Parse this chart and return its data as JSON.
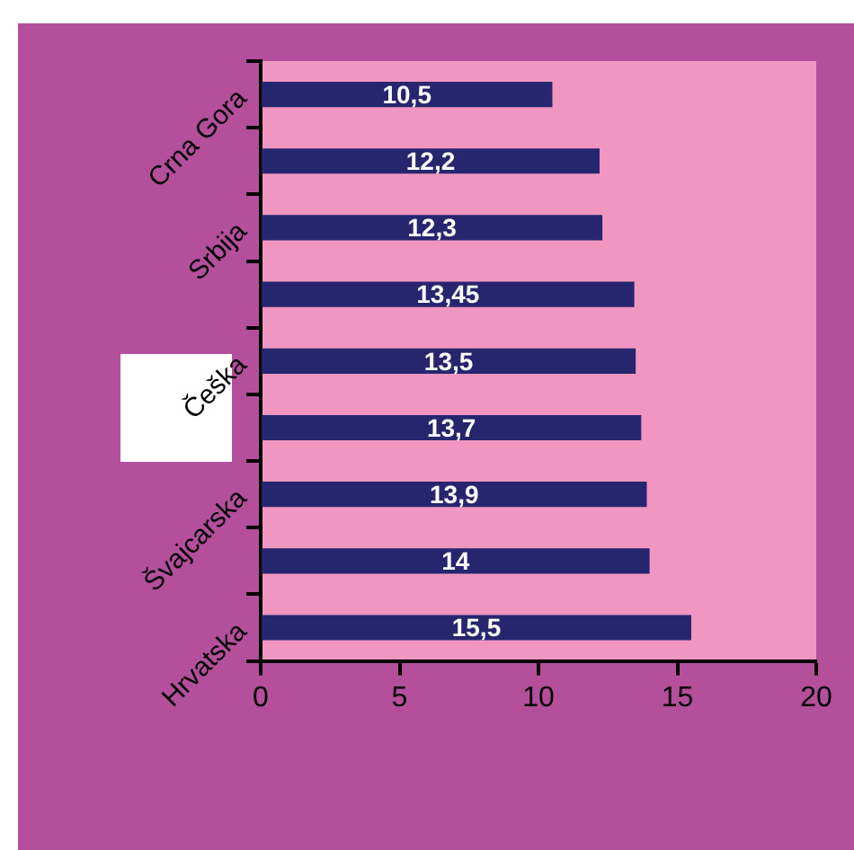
{
  "chart_data": {
    "type": "bar",
    "orientation": "horizontal",
    "categories": [
      "Crna Gora",
      null,
      "Srbija",
      null,
      "Češka",
      null,
      "Švajcarska",
      null,
      "Hrvatska"
    ],
    "values": [
      10.5,
      12.2,
      12.3,
      13.45,
      13.5,
      13.7,
      13.9,
      14,
      15.5
    ],
    "value_labels": [
      "10,5",
      "12,2",
      "12,3",
      "13,45",
      "13,5",
      "13,7",
      "13,9",
      "14",
      "15,5"
    ],
    "color": "#26266e",
    "xlim": [
      0,
      20
    ],
    "xticks": [
      0,
      5,
      10,
      15,
      20
    ],
    "grid": false,
    "legend": false
  }
}
